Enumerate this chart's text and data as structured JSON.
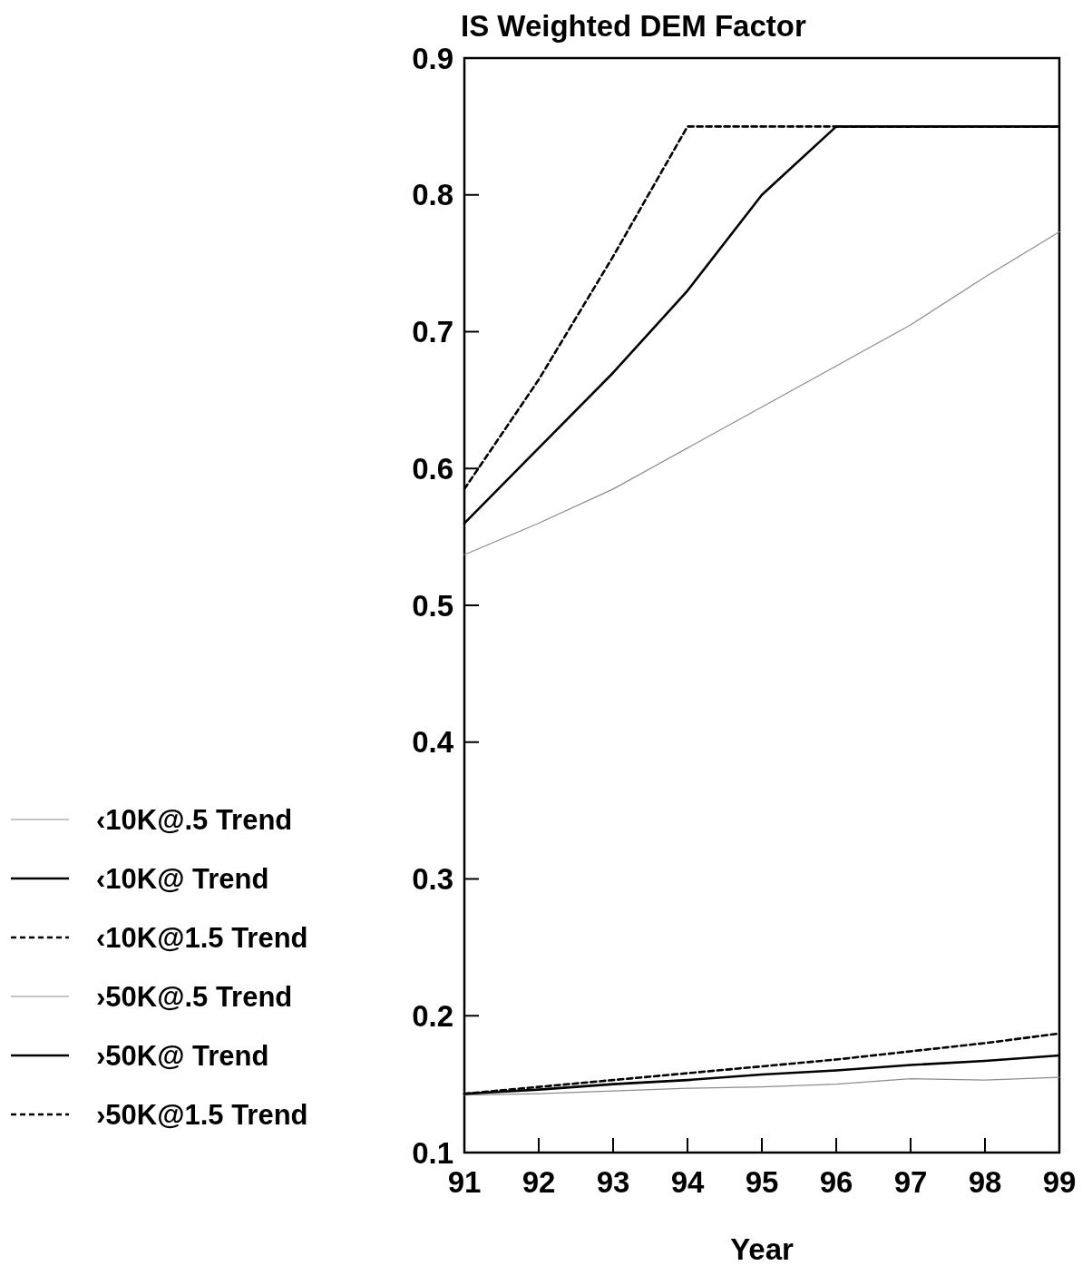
{
  "chart_data": {
    "type": "line",
    "title": "IS Weighted DEM Factor",
    "xlabel": "Year",
    "x": [
      91,
      92,
      93,
      94,
      95,
      96,
      97,
      98,
      99
    ],
    "xlim": [
      91,
      99
    ],
    "xticks": [
      91,
      92,
      93,
      94,
      95,
      96,
      97,
      98,
      99
    ],
    "ylim": [
      0.1,
      0.9
    ],
    "yticks": [
      0.1,
      0.2,
      0.3,
      0.4,
      0.5,
      0.6,
      0.7,
      0.8,
      0.9
    ],
    "grid": false,
    "legend": "left",
    "marker": "none",
    "series": [
      {
        "name": "‹10K@.5 Trend",
        "color": "#8c8c8c",
        "line_style": "solid",
        "values": [
          0.537,
          0.56,
          0.585,
          0.615,
          0.645,
          0.675,
          0.705,
          0.74,
          0.773
        ]
      },
      {
        "name": "‹10K@ Trend",
        "color": "#000000",
        "line_style": "solid",
        "values": [
          0.56,
          0.615,
          0.67,
          0.73,
          0.8,
          0.85,
          0.85,
          0.85,
          0.85
        ]
      },
      {
        "name": "‹10K@1.5 Trend",
        "color": "#000000",
        "line_style": "dashed",
        "values": [
          0.585,
          0.665,
          0.755,
          0.85,
          0.85,
          0.85,
          0.85,
          0.85,
          0.85
        ]
      },
      {
        "name": "›50K@.5 Trend",
        "color": "#8c8c8c",
        "line_style": "solid",
        "values": [
          0.142,
          0.143,
          0.145,
          0.147,
          0.148,
          0.15,
          0.154,
          0.153,
          0.155
        ]
      },
      {
        "name": "›50K@ Trend",
        "color": "#000000",
        "line_style": "solid",
        "values": [
          0.143,
          0.146,
          0.15,
          0.153,
          0.157,
          0.16,
          0.164,
          0.167,
          0.171
        ]
      },
      {
        "name": "›50K@1.5 Trend",
        "color": "#000000",
        "line_style": "dashed",
        "values": [
          0.143,
          0.148,
          0.153,
          0.158,
          0.163,
          0.168,
          0.174,
          0.18,
          0.187
        ]
      }
    ]
  }
}
